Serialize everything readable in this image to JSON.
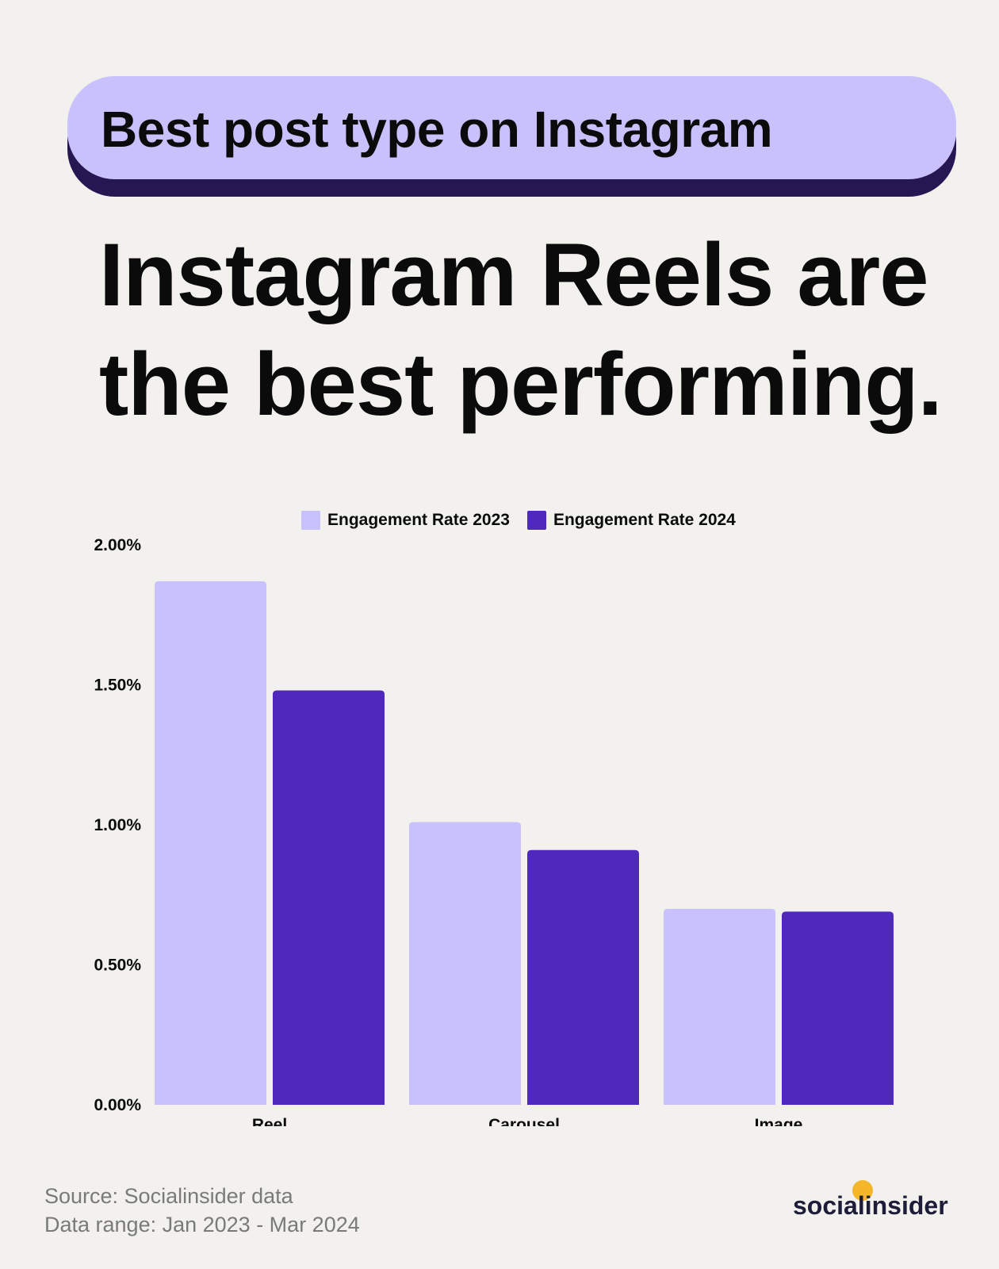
{
  "header_pill": {
    "label": "Best post type on Instagram"
  },
  "headline": {
    "line1": "Instagram Reels are",
    "line2": "the best performing."
  },
  "colors": {
    "series_2023": "#c8c1fc",
    "series_2024": "#4f29bb",
    "pill_bg": "#c8c1fc",
    "pill_shadow": "#261652",
    "background": "#f2f1ee"
  },
  "chart_data": {
    "type": "bar",
    "categories": [
      "Reel",
      "Carousel",
      "Image"
    ],
    "series": [
      {
        "name": "Engagement Rate 2023",
        "values": [
          1.87,
          1.01,
          0.7
        ]
      },
      {
        "name": "Engagement Rate 2024",
        "values": [
          1.48,
          0.91,
          0.69
        ]
      }
    ],
    "yticks": [
      "2.00%",
      "1.50%",
      "1.00%",
      "0.50%",
      "0.00%"
    ],
    "ylim": [
      0,
      2.0
    ],
    "grid": false,
    "legend": "top-center",
    "title": "",
    "xlabel": "",
    "ylabel": ""
  },
  "footer": {
    "source": "Source: Socialinsider data",
    "range": "Data range: Jan 2023 - Mar 2024",
    "brand": "socialinsider"
  }
}
